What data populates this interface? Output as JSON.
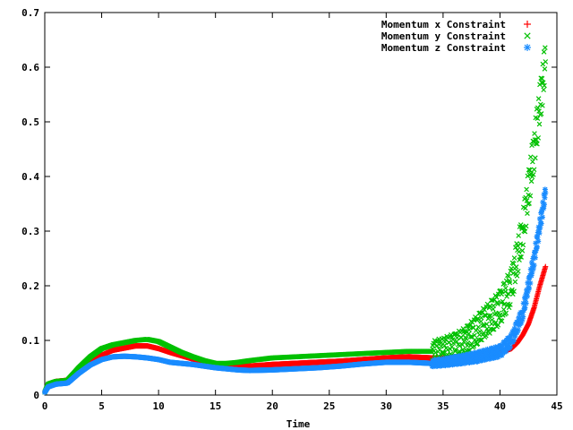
{
  "chart_data": {
    "type": "scatter",
    "title": "",
    "xlabel": "Time",
    "ylabel": "",
    "xlim": [
      0,
      45
    ],
    "ylim": [
      0,
      0.7
    ],
    "xticks": [
      0,
      5,
      10,
      15,
      20,
      25,
      30,
      35,
      40,
      45
    ],
    "yticks": [
      0,
      0.1,
      0.2,
      0.3,
      0.4,
      0.5,
      0.6,
      0.7
    ],
    "grid": false,
    "legend_position": "top-right",
    "series": [
      {
        "name": "Momentum x Constraint",
        "marker": "+",
        "color": "#ff0000",
        "points": [
          [
            0,
            0.005
          ],
          [
            0.3,
            0.02
          ],
          [
            1,
            0.025
          ],
          [
            2,
            0.027
          ],
          [
            3,
            0.045
          ],
          [
            4,
            0.06
          ],
          [
            5,
            0.073
          ],
          [
            6,
            0.082
          ],
          [
            7,
            0.086
          ],
          [
            8,
            0.09
          ],
          [
            9,
            0.09
          ],
          [
            10,
            0.085
          ],
          [
            11,
            0.078
          ],
          [
            12,
            0.072
          ],
          [
            13,
            0.066
          ],
          [
            14,
            0.062
          ],
          [
            15,
            0.057
          ],
          [
            16,
            0.054
          ],
          [
            17,
            0.052
          ],
          [
            18,
            0.053
          ],
          [
            20,
            0.056
          ],
          [
            22,
            0.058
          ],
          [
            24,
            0.06
          ],
          [
            26,
            0.062
          ],
          [
            28,
            0.065
          ],
          [
            30,
            0.068
          ],
          [
            32,
            0.07
          ],
          [
            34,
            0.068
          ],
          [
            35,
            0.068
          ],
          [
            36,
            0.07
          ],
          [
            37,
            0.072
          ],
          [
            38,
            0.074
          ],
          [
            39,
            0.076
          ],
          [
            40,
            0.078
          ],
          [
            41,
            0.085
          ],
          [
            41.5,
            0.095
          ],
          [
            42,
            0.11
          ],
          [
            42.5,
            0.13
          ],
          [
            43,
            0.16
          ],
          [
            43.5,
            0.2
          ],
          [
            44,
            0.235
          ]
        ]
      },
      {
        "name": "Momentum y Constraint",
        "marker": "x",
        "color": "#00c000",
        "points": [
          [
            0,
            0.005
          ],
          [
            0.3,
            0.02
          ],
          [
            1,
            0.025
          ],
          [
            2,
            0.027
          ],
          [
            3,
            0.05
          ],
          [
            4,
            0.07
          ],
          [
            5,
            0.085
          ],
          [
            6,
            0.092
          ],
          [
            7,
            0.096
          ],
          [
            8,
            0.1
          ],
          [
            9,
            0.102
          ],
          [
            10,
            0.098
          ],
          [
            11,
            0.088
          ],
          [
            12,
            0.078
          ],
          [
            13,
            0.07
          ],
          [
            14,
            0.063
          ],
          [
            15,
            0.058
          ],
          [
            16,
            0.058
          ],
          [
            17,
            0.06
          ],
          [
            18,
            0.063
          ],
          [
            20,
            0.068
          ],
          [
            22,
            0.07
          ],
          [
            24,
            0.072
          ],
          [
            26,
            0.074
          ],
          [
            28,
            0.076
          ],
          [
            30,
            0.078
          ],
          [
            32,
            0.08
          ],
          [
            34,
            0.08
          ],
          [
            35,
            0.085
          ],
          [
            36,
            0.09
          ],
          [
            37,
            0.1
          ],
          [
            38,
            0.12
          ],
          [
            39,
            0.14
          ],
          [
            40,
            0.16
          ],
          [
            41,
            0.2
          ],
          [
            42,
            0.3
          ],
          [
            43,
            0.45
          ],
          [
            44,
            0.61
          ]
        ]
      },
      {
        "name": "Momentum z Constraint",
        "marker": "*",
        "color": "#1a8cff",
        "points": [
          [
            0,
            0.005
          ],
          [
            0.3,
            0.015
          ],
          [
            1,
            0.02
          ],
          [
            2,
            0.022
          ],
          [
            3,
            0.04
          ],
          [
            4,
            0.055
          ],
          [
            5,
            0.065
          ],
          [
            6,
            0.07
          ],
          [
            7,
            0.071
          ],
          [
            8,
            0.07
          ],
          [
            9,
            0.068
          ],
          [
            10,
            0.065
          ],
          [
            11,
            0.06
          ],
          [
            12,
            0.058
          ],
          [
            13,
            0.056
          ],
          [
            14,
            0.053
          ],
          [
            15,
            0.05
          ],
          [
            16,
            0.048
          ],
          [
            17,
            0.046
          ],
          [
            18,
            0.045
          ],
          [
            20,
            0.046
          ],
          [
            22,
            0.048
          ],
          [
            24,
            0.05
          ],
          [
            26,
            0.053
          ],
          [
            28,
            0.057
          ],
          [
            30,
            0.06
          ],
          [
            32,
            0.06
          ],
          [
            34,
            0.058
          ],
          [
            35,
            0.06
          ],
          [
            36,
            0.063
          ],
          [
            37,
            0.066
          ],
          [
            38,
            0.07
          ],
          [
            39,
            0.075
          ],
          [
            40,
            0.08
          ],
          [
            41,
            0.1
          ],
          [
            42,
            0.15
          ],
          [
            43,
            0.25
          ],
          [
            44,
            0.37
          ]
        ]
      }
    ]
  }
}
